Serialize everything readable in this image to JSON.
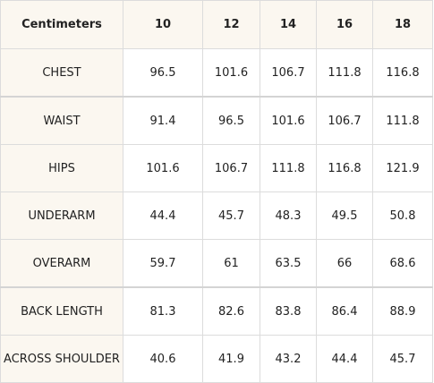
{
  "table": {
    "corner_label": "Centimeters",
    "sizes": [
      "10",
      "12",
      "14",
      "16",
      "18"
    ],
    "rows": [
      {
        "label": "CHEST",
        "values": [
          "96.5",
          "101.6",
          "106.7",
          "111.8",
          "116.8"
        ]
      },
      {
        "label": "WAIST",
        "values": [
          "91.4",
          "96.5",
          "101.6",
          "106.7",
          "111.8"
        ]
      },
      {
        "label": "HIPS",
        "values": [
          "101.6",
          "106.7",
          "111.8",
          "116.8",
          "121.9"
        ]
      },
      {
        "label": "UNDERARM",
        "values": [
          "44.4",
          "45.7",
          "48.3",
          "49.5",
          "50.8"
        ]
      },
      {
        "label": "OVERARM",
        "values": [
          "59.7",
          "61",
          "63.5",
          "66",
          "68.6"
        ]
      },
      {
        "label": "BACK LENGTH",
        "values": [
          "81.3",
          "82.6",
          "83.8",
          "86.4",
          "88.9"
        ]
      },
      {
        "label": "ACROSS SHOULDER",
        "values": [
          "40.6",
          "41.9",
          "43.2",
          "44.4",
          "45.7"
        ]
      }
    ]
  }
}
